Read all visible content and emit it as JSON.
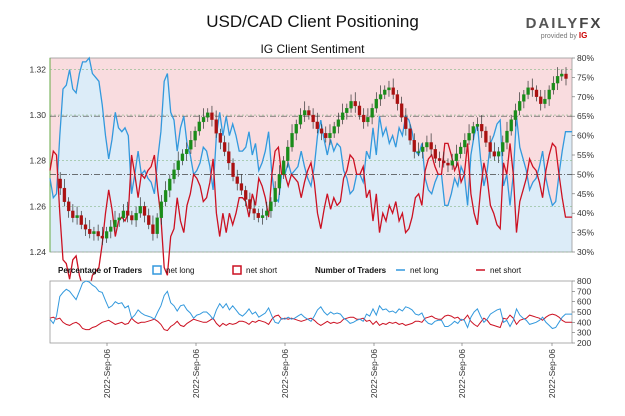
{
  "header": {
    "title": "USD/CAD Client Positioning",
    "subtitle": "IG Client Sentiment"
  },
  "logo": {
    "brand_left": "DAILY",
    "brand_right": "FX",
    "provided_by": "provided by",
    "provider": "IG"
  },
  "legend": {
    "pct_title": "Percentage of Traders",
    "pct_long": "net long",
    "pct_short": "net short",
    "num_title": "Number of Traders",
    "num_long": "net long",
    "num_short": "net short"
  },
  "colors": {
    "long": "#3399dd",
    "short": "#cc1122",
    "candle_up": "#1a8c1a",
    "candle_down": "#aa1111",
    "long_fill": "#dcecf8",
    "short_fill": "#f9dcdf"
  },
  "chart_data": {
    "type": "line",
    "title": "USD/CAD Client Positioning",
    "subtitle": "IG Client Sentiment",
    "price_axis": {
      "ticks": [
        "1.32",
        "1.30",
        "1.28",
        "1.26",
        "1.24"
      ],
      "range": [
        1.24,
        1.325
      ]
    },
    "pct_axis": {
      "ticks": [
        "80%",
        "75%",
        "70%",
        "65%",
        "60%",
        "55%",
        "50%",
        "45%",
        "40%",
        "35%",
        "30%"
      ],
      "range": [
        30,
        80
      ]
    },
    "count_axis": {
      "ticks": [
        "800",
        "700",
        "600",
        "500",
        "400",
        "300",
        "200"
      ],
      "range": [
        200,
        800
      ]
    },
    "x_ticks": [
      "2022-Sep-06",
      "2022-Sep-06",
      "2022-Sep-06",
      "2022-Sep-06",
      "2022-Sep-06",
      "2022-Sep-06"
    ],
    "series": [
      {
        "name": "net long %",
        "values": [
          49,
          44,
          45,
          60,
          72,
          73,
          77,
          72,
          71,
          76,
          79,
          79,
          80,
          76,
          75,
          74,
          68,
          60,
          54,
          59,
          66,
          62,
          61,
          62,
          60,
          45,
          50,
          56,
          50,
          51,
          49,
          48,
          45,
          54,
          61,
          74,
          76,
          66,
          64,
          56,
          62,
          65,
          58,
          55,
          50,
          51,
          53,
          57,
          56,
          52,
          46,
          60,
          66,
          60,
          65,
          60,
          63,
          60,
          56,
          56,
          57,
          61,
          55,
          58,
          51,
          53,
          56,
          61,
          50,
          44,
          43,
          50,
          50,
          53,
          50,
          51,
          52,
          56,
          52,
          49,
          47,
          52,
          60,
          64,
          59,
          55,
          59,
          56,
          58,
          57,
          51,
          49,
          45,
          46,
          50,
          50,
          48,
          56,
          54,
          62,
          55,
          65,
          60,
          62,
          58,
          60,
          57,
          62,
          60,
          65,
          64,
          61,
          56,
          55,
          58,
          49,
          46,
          45,
          48,
          50,
          50,
          42,
          42,
          45,
          49,
          47,
          52,
          50,
          42,
          55,
          60,
          63,
          54,
          47,
          51,
          58,
          60,
          63,
          64,
          47,
          50,
          42,
          50,
          65,
          57,
          54,
          51,
          46,
          48,
          49,
          52,
          56,
          49,
          45,
          42,
          43,
          50,
          56,
          61,
          61,
          61
        ]
      },
      {
        "name": "net short %",
        "values": [
          51,
          56,
          55,
          40,
          28,
          27,
          23,
          28,
          29,
          24,
          21,
          21,
          20,
          24,
          25,
          26,
          32,
          40,
          46,
          41,
          34,
          38,
          39,
          38,
          40,
          55,
          50,
          44,
          50,
          49,
          51,
          52,
          55,
          46,
          39,
          26,
          24,
          34,
          36,
          44,
          38,
          35,
          42,
          45,
          50,
          49,
          47,
          43,
          44,
          48,
          54,
          40,
          34,
          40,
          35,
          40,
          37,
          40,
          44,
          44,
          43,
          39,
          45,
          42,
          49,
          47,
          44,
          39,
          50,
          56,
          57,
          50,
          50,
          47,
          50,
          49,
          48,
          44,
          48,
          51,
          53,
          48,
          40,
          36,
          41,
          45,
          41,
          44,
          42,
          43,
          49,
          51,
          55,
          54,
          50,
          50,
          52,
          44,
          46,
          38,
          45,
          35,
          40,
          38,
          42,
          40,
          43,
          38,
          40,
          35,
          36,
          39,
          44,
          45,
          42,
          51,
          54,
          55,
          52,
          50,
          50,
          58,
          58,
          55,
          51,
          53,
          48,
          50,
          58,
          45,
          40,
          37,
          46,
          53,
          49,
          42,
          40,
          37,
          36,
          53,
          50,
          58,
          50,
          35,
          43,
          46,
          49,
          54,
          52,
          51,
          48,
          44,
          51,
          55,
          58,
          57,
          50,
          44,
          39,
          39,
          39
        ]
      },
      {
        "name": "number net long",
        "values": [
          430,
          390,
          460,
          650,
          690,
          720,
          700,
          660,
          620,
          700,
          780,
          800,
          790,
          760,
          740,
          700,
          690,
          610,
          540,
          560,
          600,
          580,
          590,
          540,
          560,
          440,
          470,
          520,
          490,
          470,
          460,
          450,
          430,
          500,
          560,
          660,
          700,
          590,
          560,
          510,
          560,
          570,
          520,
          490,
          440,
          470,
          480,
          500,
          500,
          470,
          430,
          520,
          580,
          540,
          580,
          520,
          560,
          520,
          480,
          460,
          490,
          530,
          480,
          500,
          450,
          470,
          490,
          540,
          460,
          400,
          390,
          440,
          430,
          450,
          430,
          440,
          460,
          480,
          450,
          430,
          410,
          460,
          520,
          550,
          500,
          470,
          500,
          480,
          490,
          480,
          440,
          420,
          390,
          400,
          420,
          430,
          410,
          480,
          460,
          530,
          470,
          560,
          520,
          530,
          500,
          510,
          490,
          530,
          510,
          550,
          540,
          520,
          480,
          470,
          490,
          420,
          390,
          380,
          410,
          420,
          420,
          360,
          360,
          380,
          410,
          390,
          430,
          420,
          350,
          450,
          500,
          530,
          460,
          400,
          430,
          480,
          500,
          520,
          530,
          400,
          420,
          360,
          420,
          530,
          470,
          440,
          420,
          380,
          390,
          400,
          420,
          450,
          400,
          370,
          340,
          350,
          400,
          450,
          480,
          480,
          480
        ]
      },
      {
        "name": "number net short",
        "values": [
          440,
          450,
          430,
          440,
          400,
          380,
          370,
          390,
          400,
          380,
          340,
          330,
          330,
          350,
          360,
          380,
          400,
          410,
          420,
          400,
          380,
          390,
          400,
          380,
          390,
          440,
          410,
          390,
          400,
          400,
          410,
          420,
          430,
          410,
          380,
          330,
          320,
          360,
          380,
          410,
          370,
          360,
          390,
          410,
          430,
          420,
          410,
          400,
          400,
          420,
          440,
          390,
          360,
          390,
          370,
          390,
          380,
          390,
          410,
          410,
          400,
          380,
          410,
          400,
          420,
          410,
          400,
          380,
          430,
          460,
          470,
          430,
          440,
          430,
          440,
          430,
          420,
          410,
          420,
          430,
          440,
          420,
          390,
          370,
          390,
          410,
          390,
          400,
          390,
          400,
          430,
          440,
          450,
          450,
          430,
          430,
          440,
          410,
          420,
          380,
          410,
          370,
          390,
          380,
          400,
          390,
          400,
          380,
          390,
          370,
          380,
          390,
          410,
          410,
          400,
          440,
          450,
          460,
          440,
          430,
          430,
          460,
          470,
          460,
          440,
          450,
          420,
          430,
          470,
          410,
          380,
          360,
          400,
          440,
          420,
          380,
          370,
          360,
          350,
          440,
          430,
          470,
          440,
          380,
          420,
          430,
          440,
          470,
          460,
          450,
          440,
          420,
          450,
          470,
          480,
          470,
          450,
          420,
          400,
          400,
          400
        ]
      },
      {
        "name": "USD/CAD price",
        "values": [
          1.272,
          1.268,
          1.262,
          1.258,
          1.255,
          1.256,
          1.252,
          1.25,
          1.248,
          1.249,
          1.247,
          1.246,
          1.249,
          1.251,
          1.254,
          1.255,
          1.258,
          1.256,
          1.254,
          1.257,
          1.26,
          1.256,
          1.252,
          1.248,
          1.255,
          1.262,
          1.267,
          1.272,
          1.276,
          1.28,
          1.283,
          1.285,
          1.289,
          1.293,
          1.297,
          1.299,
          1.301,
          1.298,
          1.292,
          1.288,
          1.284,
          1.279,
          1.273,
          1.27,
          1.267,
          1.263,
          1.259,
          1.257,
          1.255,
          1.256,
          1.258,
          1.262,
          1.268,
          1.274,
          1.28,
          1.286,
          1.292,
          1.296,
          1.3,
          1.302,
          1.3,
          1.297,
          1.294,
          1.292,
          1.29,
          1.292,
          1.295,
          1.298,
          1.301,
          1.303,
          1.306,
          1.304,
          1.3,
          1.297,
          1.299,
          1.303,
          1.307,
          1.309,
          1.311,
          1.312,
          1.309,
          1.305,
          1.299,
          1.294,
          1.289,
          1.284,
          1.284,
          1.286,
          1.288,
          1.285,
          1.281,
          1.28,
          1.279,
          1.278,
          1.28,
          1.283,
          1.286,
          1.289,
          1.292,
          1.295,
          1.296,
          1.293,
          1.288,
          1.284,
          1.282,
          1.284,
          1.288,
          1.293,
          1.298,
          1.302,
          1.306,
          1.309,
          1.312,
          1.311,
          1.308,
          1.305,
          1.307,
          1.311,
          1.314,
          1.317,
          1.318,
          1.316
        ]
      }
    ]
  }
}
